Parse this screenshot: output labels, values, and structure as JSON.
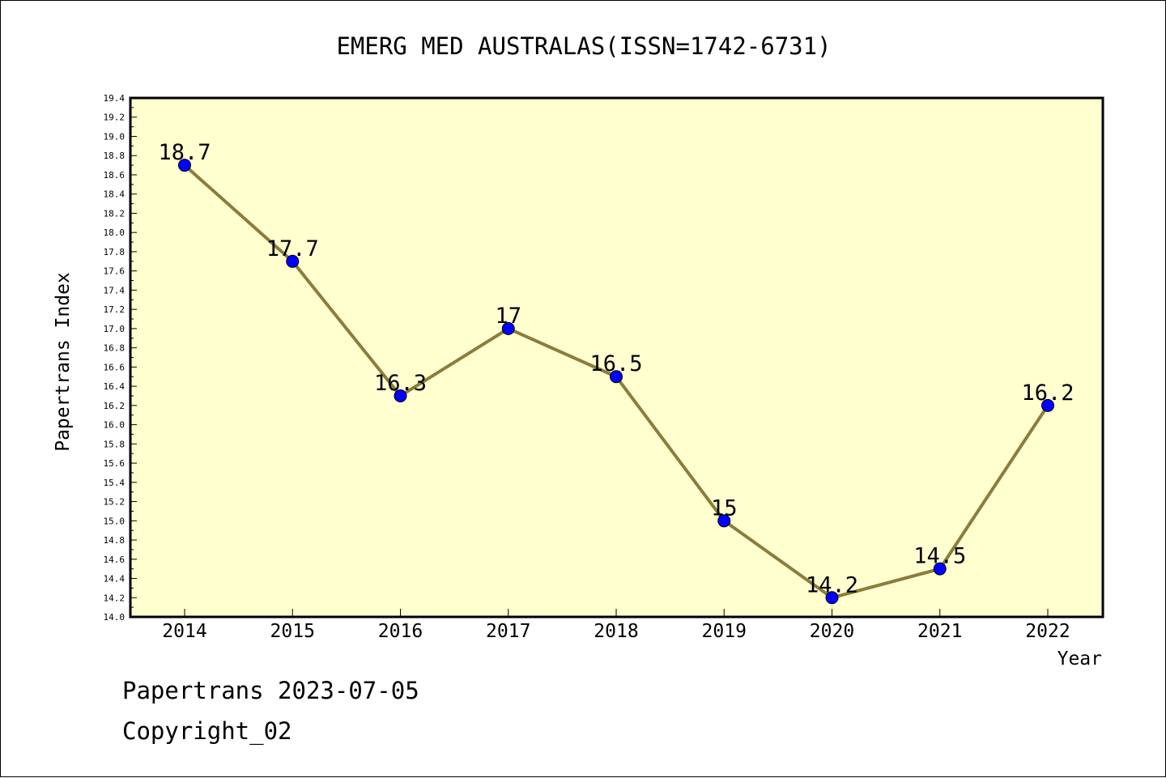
{
  "chart_data": {
    "type": "line",
    "title": "EMERG MED AUSTRALAS(ISSN=1742-6731)",
    "xlabel": "Year",
    "ylabel": "Papertrans Index",
    "categories": [
      "2014",
      "2015",
      "2016",
      "2017",
      "2018",
      "2019",
      "2020",
      "2021",
      "2022"
    ],
    "values": [
      18.7,
      17.7,
      16.3,
      17,
      16.5,
      15,
      14.2,
      14.5,
      16.2
    ],
    "value_labels": [
      "18.7",
      "17.7",
      "16.3",
      "17",
      "16.5",
      "15",
      "14.2",
      "14.5",
      "16.2"
    ],
    "ylim": [
      14.0,
      19.4
    ],
    "ytick_step": 0.2,
    "grid": false,
    "colors": {
      "plot_background": "#ffffd0",
      "line": "#8b7d3a",
      "marker": "#0000ff"
    }
  },
  "footer": {
    "line1": "Papertrans 2023-07-05",
    "line2": "Copyright_02"
  }
}
